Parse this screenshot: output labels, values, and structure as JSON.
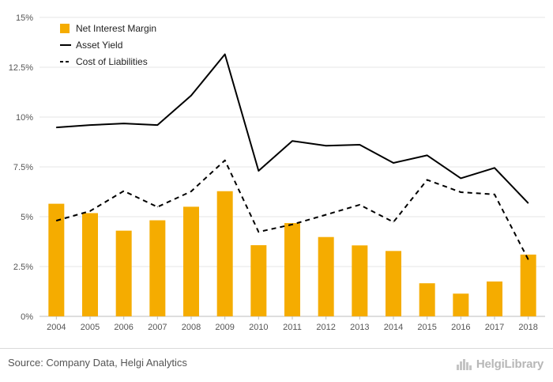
{
  "chart_data": {
    "type": "bar",
    "categories": [
      "2004",
      "2005",
      "2006",
      "2007",
      "2008",
      "2009",
      "2010",
      "2011",
      "2012",
      "2013",
      "2014",
      "2015",
      "2016",
      "2017",
      "2018"
    ],
    "ylim": [
      0,
      15
    ],
    "ytick_values": [
      0,
      2.5,
      5,
      7.5,
      10,
      12.5,
      15
    ],
    "ytick_labels": [
      "0%",
      "2.5%",
      "5%",
      "7.5%",
      "10%",
      "12.5%",
      "15%"
    ],
    "grid": true,
    "legend_position": "top-left",
    "series": [
      {
        "name": "Net Interest Margin",
        "kind": "bar",
        "color": "#f5ac00",
        "values": [
          5.65,
          5.18,
          4.3,
          4.82,
          5.5,
          6.28,
          3.57,
          4.68,
          3.98,
          3.56,
          3.28,
          1.66,
          1.14,
          1.75,
          3.1
        ]
      },
      {
        "name": "Asset Yield",
        "kind": "line",
        "style": "solid",
        "color": "#000000",
        "values": [
          9.48,
          9.6,
          9.68,
          9.6,
          11.08,
          13.15,
          7.3,
          8.8,
          8.56,
          8.61,
          7.7,
          8.08,
          6.93,
          7.45,
          5.68
        ]
      },
      {
        "name": "Cost of Liabilities",
        "kind": "line",
        "style": "dashed",
        "color": "#000000",
        "values": [
          4.8,
          5.28,
          6.29,
          5.49,
          6.27,
          7.83,
          4.24,
          4.61,
          5.1,
          5.6,
          4.73,
          6.85,
          6.23,
          6.12,
          2.85
        ]
      }
    ]
  },
  "footer": {
    "source": "Source: Company Data, Helgi Analytics",
    "brand": "HelgiLibrary"
  }
}
